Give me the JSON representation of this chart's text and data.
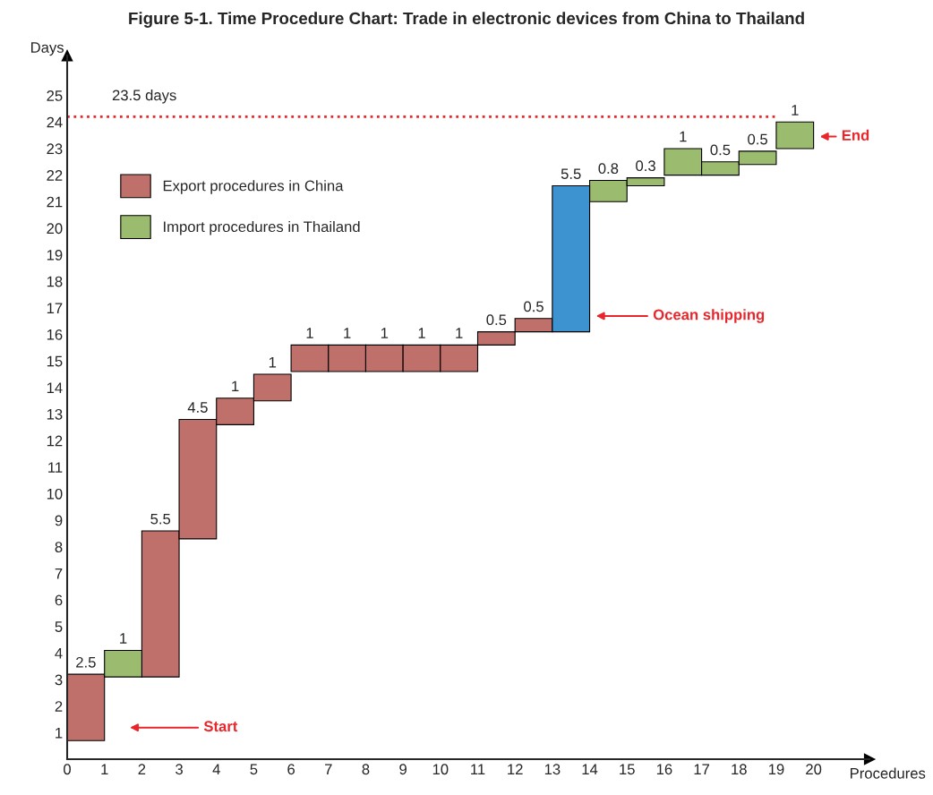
{
  "chart_data": {
    "type": "bar",
    "title": "Figure 5-1. Time Procedure Chart: Trade in electronic devices from China to Thailand",
    "xlabel": "Procedures",
    "ylabel": "Days",
    "series": [
      {
        "name": "Export procedures in China",
        "color": "#c0706a",
        "x": [
          0.5,
          2.5,
          3.5,
          4.5,
          5.5,
          6.5,
          7.5,
          8.5,
          9.5,
          10.5,
          11.5,
          12.5
        ],
        "base": [
          0.7,
          3.1,
          8.3,
          12.6,
          13.5,
          14.6,
          14.6,
          14.6,
          14.6,
          14.6,
          15.6,
          16.1
        ],
        "values": [
          2.5,
          5.5,
          4.5,
          1,
          1,
          1,
          1,
          1,
          1,
          1,
          0.5,
          0.5
        ]
      },
      {
        "name": "Import procedures in Thailand",
        "color": "#9bbb6e",
        "x": [
          1.5,
          14.5,
          15.5,
          16.5,
          17.5,
          18.5,
          19.5
        ],
        "base": [
          3.1,
          21.0,
          21.6,
          22.0,
          22.0,
          22.4,
          23.0
        ],
        "values": [
          1,
          0.8,
          0.3,
          1,
          0.5,
          0.5,
          1
        ]
      },
      {
        "color": "#3d93d0",
        "x": [
          13.5
        ],
        "base": [
          16.1
        ],
        "values": [
          5.5
        ]
      }
    ],
    "data_labels": true,
    "xlim": [
      0,
      21.5
    ],
    "xticks": [
      0,
      1,
      2,
      3,
      4,
      5,
      6,
      7,
      8,
      9,
      10,
      11,
      12,
      13,
      14,
      15,
      16,
      17,
      18,
      19,
      20
    ],
    "ylim": [
      0,
      26.5
    ],
    "yticks": [
      1,
      2,
      3,
      4,
      5,
      6,
      7,
      8,
      9,
      10,
      11,
      12,
      13,
      14,
      15,
      16,
      17,
      18,
      19,
      20,
      21,
      22,
      23,
      24,
      25
    ],
    "ref_lines": [
      {
        "axis": "y",
        "value": 24.2,
        "label": "23.5 days",
        "color": "#e8262b",
        "line_style": "dotted"
      }
    ],
    "annotations": [
      "Start",
      "Ocean shipping",
      "End"
    ],
    "legend": "top left",
    "grid": false
  }
}
